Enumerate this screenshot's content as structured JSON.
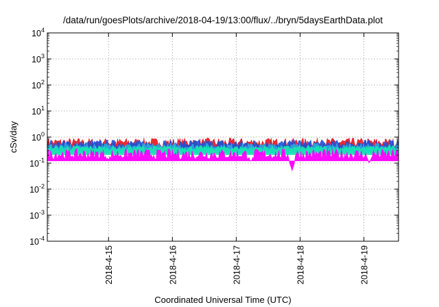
{
  "chart_data": {
    "type": "area",
    "title": "/data/run/goesPlots/archive/2018-04-19/13:00/flux/../bryn/5daysEarthData.plot",
    "xlabel": "Coordinated Universal Time (UTC)",
    "ylabel": "cSv/day",
    "y_scale": "log",
    "ylim": [
      0.0001,
      10000
    ],
    "y_ticks": [
      {
        "value": 0.0001,
        "base": "10",
        "exp": "-4"
      },
      {
        "value": 0.001,
        "base": "10",
        "exp": "-3"
      },
      {
        "value": 0.01,
        "base": "10",
        "exp": "-2"
      },
      {
        "value": 0.1,
        "base": "10",
        "exp": "-1"
      },
      {
        "value": 1,
        "base": "10",
        "exp": "0"
      },
      {
        "value": 10,
        "base": "10",
        "exp": "1"
      },
      {
        "value": 100,
        "base": "10",
        "exp": "2"
      },
      {
        "value": 1000,
        "base": "10",
        "exp": "3"
      },
      {
        "value": 10000,
        "base": "10",
        "exp": "4"
      }
    ],
    "xlim": [
      "2018-04-14T01:00",
      "2018-04-19T13:00"
    ],
    "x_ticks": [
      {
        "value": "2018-04-15",
        "label": "2018-4-15"
      },
      {
        "value": "2018-04-16",
        "label": "2018-4-16"
      },
      {
        "value": "2018-04-17",
        "label": "2018-4-17"
      },
      {
        "value": "2018-04-18",
        "label": "2018-4-18"
      },
      {
        "value": "2018-04-19",
        "label": "2018-4-19"
      }
    ],
    "grid": true,
    "series": [
      {
        "color": "#e8141e",
        "level": 0.62,
        "spread": 1.5
      },
      {
        "color": "#1f4fd6",
        "level": 0.55,
        "spread": 1.45
      },
      {
        "color": "#2aa9e0",
        "level": 0.44,
        "spread": 1.35
      },
      {
        "color": "#17e6b0",
        "level": 0.38,
        "spread": 1.25
      },
      {
        "color": "#ff00ff",
        "level": 0.22,
        "spread": 1.6
      }
    ],
    "dips": [
      {
        "x": "2018-04-15T00:00",
        "y": 0.12
      },
      {
        "x": "2018-04-17T05:30",
        "y": 0.1
      },
      {
        "x": "2018-04-17T21:00",
        "y": 0.05
      },
      {
        "x": "2018-04-19T02:00",
        "y": 0.09
      }
    ]
  }
}
